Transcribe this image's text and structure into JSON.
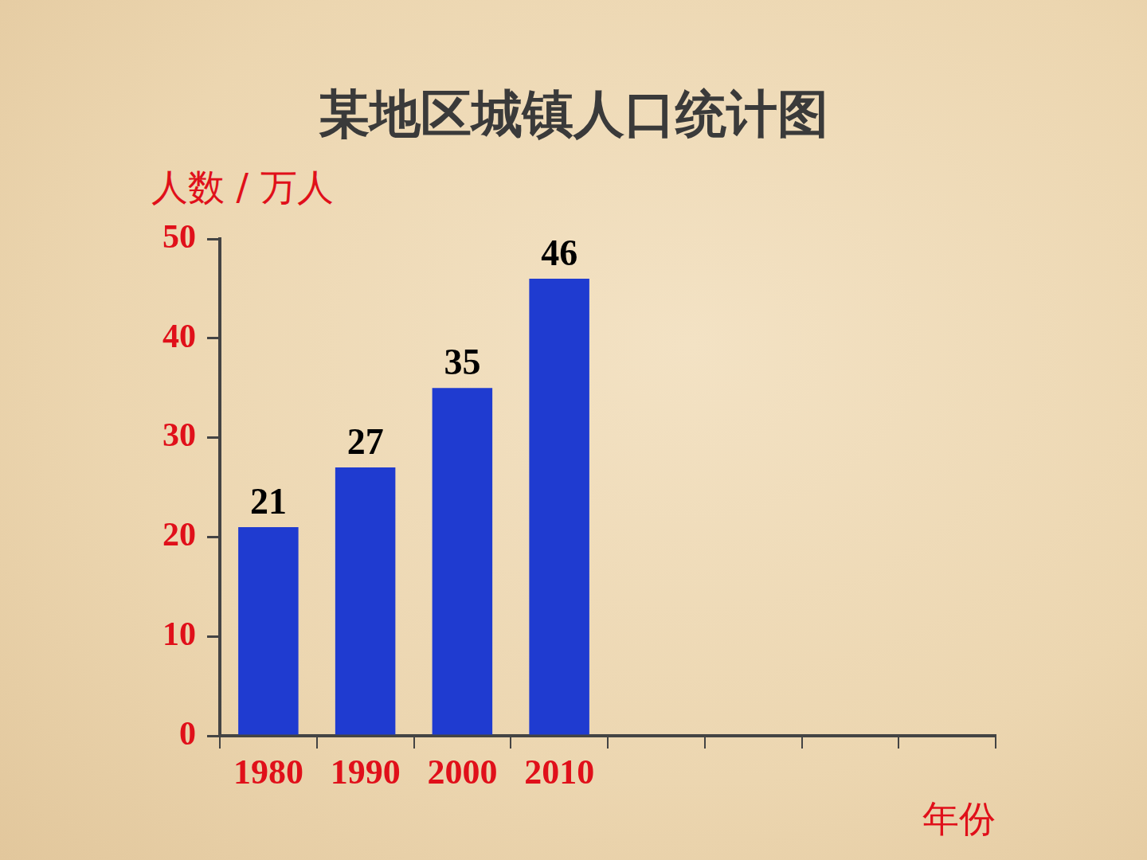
{
  "chart_data": {
    "type": "bar",
    "title": "某地区城镇人口统计图",
    "y_label": "人数 / 万人",
    "x_label": "年份",
    "categories": [
      "1980",
      "1990",
      "2000",
      "2010",
      null,
      null,
      null,
      null
    ],
    "values": [
      21,
      27,
      35,
      46,
      null,
      null,
      null,
      null
    ],
    "color": "#1f3bd0",
    "ylim": [
      0,
      50
    ],
    "yticks": [
      0,
      10,
      20,
      30,
      40,
      50
    ],
    "grid": false,
    "data_labels": true
  }
}
